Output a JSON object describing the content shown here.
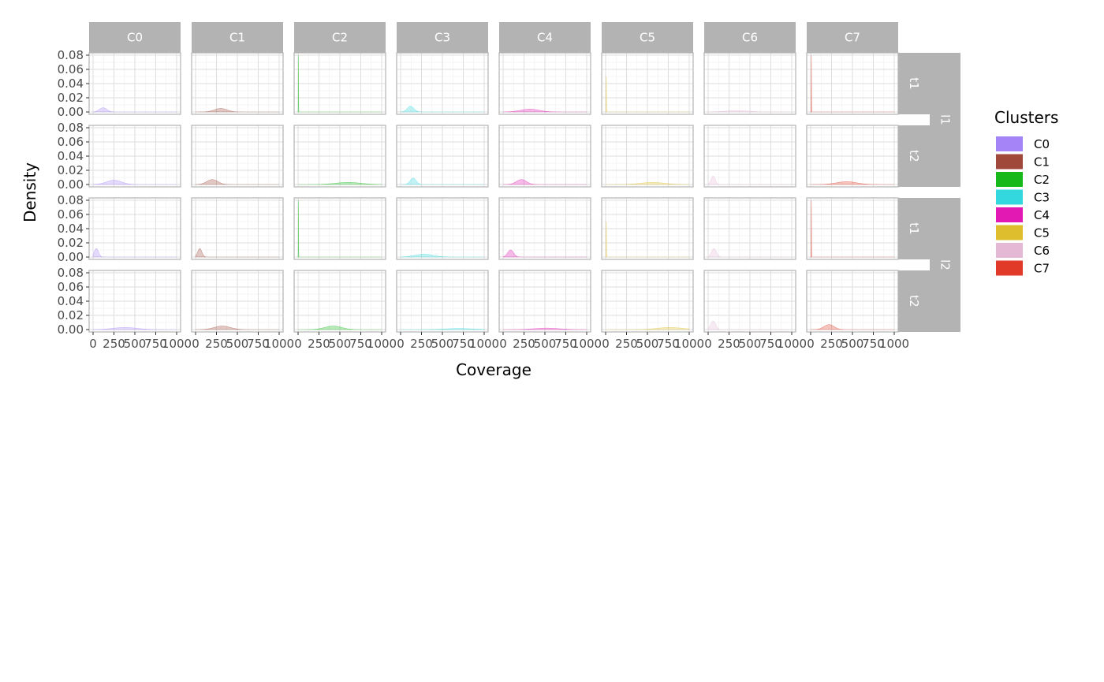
{
  "chart_data": {
    "type": "area",
    "subtype": "density-facet-grid",
    "xlabel": "Coverage",
    "ylabel": "Density",
    "xlim": [
      0,
      1000
    ],
    "ylim": [
      0,
      0.08
    ],
    "x_ticks": [
      0,
      250,
      500,
      750,
      1000
    ],
    "x_tick_labels": [
      "0",
      "250",
      "500",
      "750",
      "1000"
    ],
    "y_ticks": [
      0,
      0.02,
      0.04,
      0.06,
      0.08
    ],
    "y_tick_labels": [
      "0.00",
      "0.02",
      "0.04",
      "0.06",
      "0.08"
    ],
    "grid": true,
    "columns": [
      "C0",
      "C1",
      "C2",
      "C3",
      "C4",
      "C5",
      "C6",
      "C7"
    ],
    "outer_rows": [
      "l1",
      "l2"
    ],
    "inner_rows": [
      "t1",
      "t2"
    ],
    "legend": {
      "title": "Clusters",
      "position": "right",
      "items": [
        {
          "label": "C0",
          "color": "#A584F7"
        },
        {
          "label": "C1",
          "color": "#A0493B"
        },
        {
          "label": "C2",
          "color": "#17B81A"
        },
        {
          "label": "C3",
          "color": "#33D7DE"
        },
        {
          "label": "C4",
          "color": "#E219B3"
        },
        {
          "label": "C5",
          "color": "#DEBE2C"
        },
        {
          "label": "C6",
          "color": "#E5B9D6"
        },
        {
          "label": "C7",
          "color": "#E23A28"
        }
      ]
    },
    "panels": [
      {
        "row": "l1",
        "sub": "t1",
        "curves": [
          {
            "mean": 120,
            "sd": 45,
            "peak": 0.006
          },
          {
            "mean": 300,
            "sd": 75,
            "peak": 0.005
          },
          {
            "mean": 5,
            "sd": 1.5,
            "peak": 0.08
          },
          {
            "mean": 120,
            "sd": 40,
            "peak": 0.008
          },
          {
            "mean": 320,
            "sd": 110,
            "peak": 0.004
          },
          {
            "mean": 8,
            "sd": 2,
            "peak": 0.05
          },
          {
            "mean": 350,
            "sd": 140,
            "peak": 0.002
          },
          {
            "mean": 8,
            "sd": 2,
            "peak": 0.08
          }
        ]
      },
      {
        "row": "l1",
        "sub": "t2",
        "curves": [
          {
            "mean": 250,
            "sd": 90,
            "peak": 0.006
          },
          {
            "mean": 200,
            "sd": 65,
            "peak": 0.007
          },
          {
            "mean": 600,
            "sd": 150,
            "peak": 0.003
          },
          {
            "mean": 150,
            "sd": 35,
            "peak": 0.009
          },
          {
            "mean": 220,
            "sd": 60,
            "peak": 0.007
          },
          {
            "mean": 560,
            "sd": 140,
            "peak": 0.003
          },
          {
            "mean": 60,
            "sd": 25,
            "peak": 0.012
          },
          {
            "mean": 430,
            "sd": 120,
            "peak": 0.004
          }
        ]
      },
      {
        "row": "l2",
        "sub": "t1",
        "curves": [
          {
            "mean": 40,
            "sd": 25,
            "peak": 0.012
          },
          {
            "mean": 50,
            "sd": 25,
            "peak": 0.012
          },
          {
            "mean": 5,
            "sd": 1.5,
            "peak": 0.08
          },
          {
            "mean": 280,
            "sd": 110,
            "peak": 0.004
          },
          {
            "mean": 90,
            "sd": 35,
            "peak": 0.01
          },
          {
            "mean": 8,
            "sd": 2,
            "peak": 0.05
          },
          {
            "mean": 70,
            "sd": 30,
            "peak": 0.012
          },
          {
            "mean": 8,
            "sd": 2,
            "peak": 0.08
          }
        ]
      },
      {
        "row": "l2",
        "sub": "t2",
        "curves": [
          {
            "mean": 380,
            "sd": 140,
            "peak": 0.003
          },
          {
            "mean": 320,
            "sd": 95,
            "peak": 0.005
          },
          {
            "mean": 420,
            "sd": 100,
            "peak": 0.005
          },
          {
            "mean": 700,
            "sd": 170,
            "peak": 0.0015
          },
          {
            "mean": 520,
            "sd": 150,
            "peak": 0.002
          },
          {
            "mean": 770,
            "sd": 150,
            "peak": 0.003
          },
          {
            "mean": 60,
            "sd": 30,
            "peak": 0.012
          },
          {
            "mean": 220,
            "sd": 60,
            "peak": 0.007
          }
        ]
      }
    ]
  }
}
